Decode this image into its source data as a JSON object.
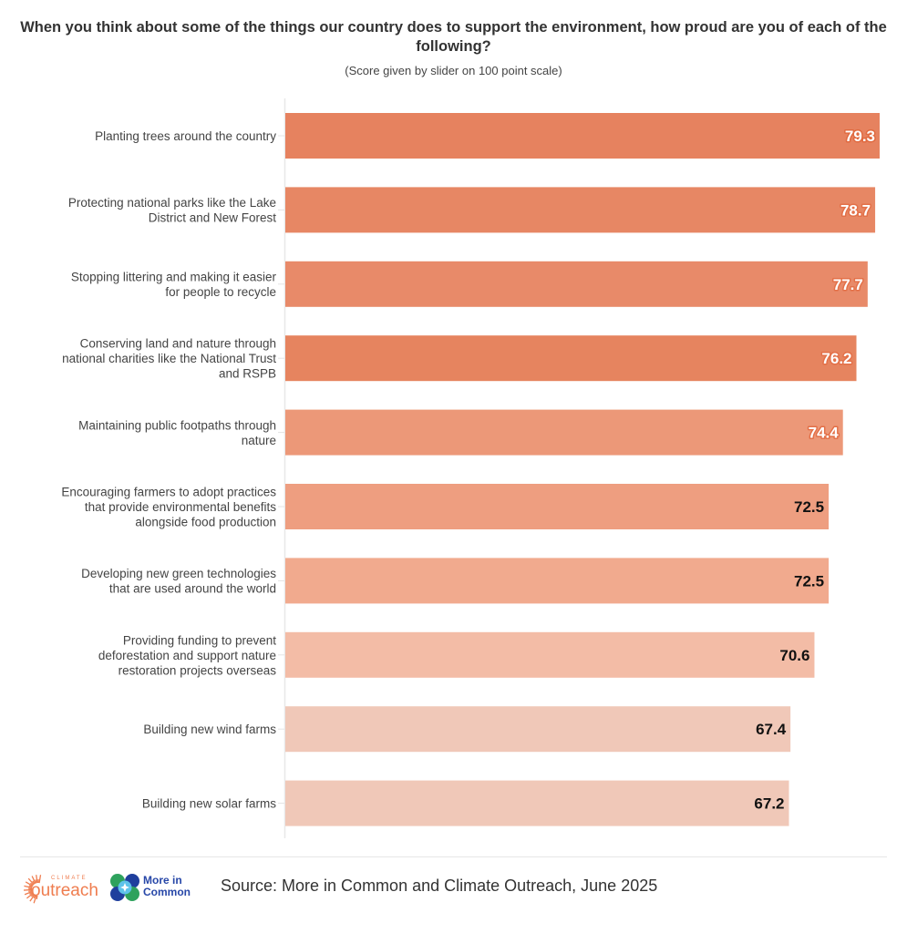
{
  "chart_data": {
    "type": "bar",
    "orientation": "horizontal",
    "title": "When you think about some of the things our country does to support the environment, how proud are you of each of the following?",
    "subtitle": "(Score given by slider on 100 point scale)",
    "xlabel": "",
    "ylabel": "",
    "xlim": [
      0,
      79.3
    ],
    "grid": false,
    "categories": [
      [
        "Planting trees around the country"
      ],
      [
        "Protecting national parks like the Lake",
        "District and New Forest"
      ],
      [
        "Stopping littering and making it easier",
        "for people to recycle"
      ],
      [
        "Conserving land and nature through",
        "national charities like the National Trust",
        "and RSPB"
      ],
      [
        "Maintaining public footpaths through",
        "nature"
      ],
      [
        "Encouraging farmers to adopt practices",
        "that provide environmental benefits",
        "alongside food production"
      ],
      [
        "Developing new green technologies",
        "that are used around the world"
      ],
      [
        "Providing funding to prevent",
        "deforestation and support nature",
        "restoration projects overseas"
      ],
      [
        "Building new wind farms"
      ],
      [
        "Building new solar farms"
      ]
    ],
    "values": [
      79.3,
      78.7,
      77.7,
      76.2,
      74.4,
      72.5,
      72.5,
      70.6,
      67.4,
      67.2
    ],
    "value_labels": [
      "79.3",
      "78.7",
      "77.7",
      "76.2",
      "74.4",
      "72.5",
      "72.5",
      "70.6",
      "67.4",
      "67.2"
    ],
    "bar_colors": [
      "#e6825f",
      "#e78764",
      "#e88a69",
      "#e6845f",
      "#ec9878",
      "#ee9e80",
      "#f1aa8e",
      "#f3bca6",
      "#f0c8b8",
      "#f0c8b8"
    ],
    "label_colors": [
      "#ffffff",
      "#ffffff",
      "#ffffff",
      "#ffffff",
      "#ffffff",
      "#111111",
      "#111111",
      "#111111",
      "#111111",
      "#111111"
    ]
  },
  "footer": {
    "source": "Source: More in Common and Climate Outreach, June 2025",
    "logo_climate_small": "CLIMATE",
    "logo_climate_main": "outreach",
    "logo_mic_line1": "More in",
    "logo_mic_line2": "Common"
  }
}
